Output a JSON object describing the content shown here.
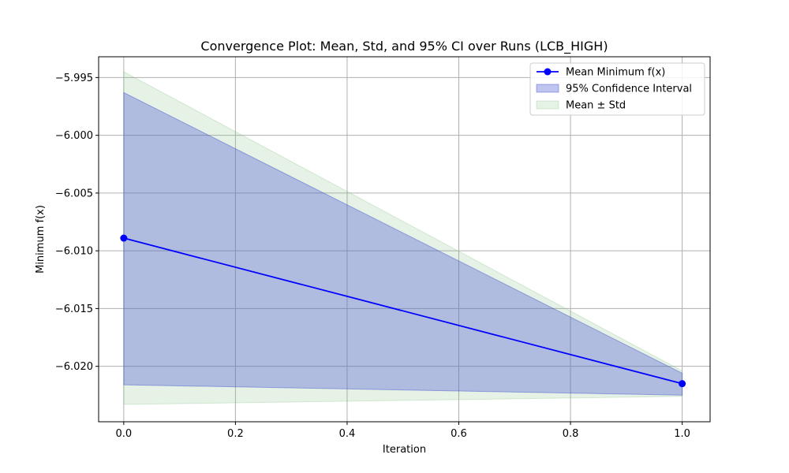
{
  "chart_data": {
    "type": "line",
    "title": "Convergence Plot: Mean, Std, and 95% CI over Runs (LCB_HIGH)",
    "xlabel": "Iteration",
    "ylabel": "Minimum f(x)",
    "xlim": [
      -0.045,
      1.05
    ],
    "ylim": [
      -6.0248,
      -5.9932
    ],
    "x_ticks": [
      0.0,
      0.2,
      0.4,
      0.6,
      0.8,
      1.0
    ],
    "x_tick_labels": [
      "0.0",
      "0.2",
      "0.4",
      "0.6",
      "0.8",
      "1.0"
    ],
    "y_ticks": [
      -5.995,
      -6.0,
      -6.005,
      -6.01,
      -6.015,
      -6.02
    ],
    "y_tick_labels": [
      "−5.995",
      "−6.000",
      "−6.005",
      "−6.010",
      "−6.015",
      "−6.020"
    ],
    "grid": true,
    "legend_position": "top-right",
    "x": [
      0,
      1
    ],
    "series": [
      {
        "name": "Mean Minimum f(x)",
        "kind": "line",
        "color": "#0000ff",
        "values": [
          -6.0089,
          -6.0215
        ]
      },
      {
        "name": "95% Confidence Interval",
        "kind": "band",
        "color": "#4050d0",
        "lower": [
          -6.0216,
          -6.0225
        ],
        "upper": [
          -5.9963,
          -6.0206
        ]
      },
      {
        "name": "Mean ± Std",
        "kind": "band",
        "color": "#80c080",
        "lower": [
          -6.0233,
          -6.0226
        ],
        "upper": [
          -5.9945,
          -6.0204
        ]
      }
    ]
  }
}
